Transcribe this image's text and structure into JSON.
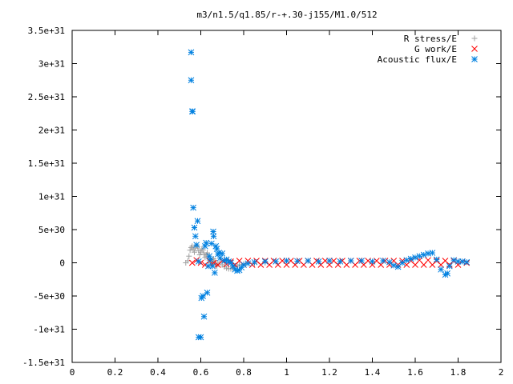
{
  "chart_data": {
    "type": "scatter",
    "title": "m3/n1.5/q1.85/r-+.30-j155/M1.0/512",
    "xlabel": "",
    "ylabel": "",
    "xlim": [
      0,
      2
    ],
    "ylim": [
      -1.5e+31,
      3.5e+31
    ],
    "grid": false,
    "legend_position": "top-right",
    "x_ticks": [
      "0",
      "0.2",
      "0.4",
      "0.6",
      "0.8",
      "1",
      "1.2",
      "1.4",
      "1.6",
      "1.8",
      "2"
    ],
    "x_tick_values": [
      0,
      0.2,
      0.4,
      0.6,
      0.8,
      1.0,
      1.2,
      1.4,
      1.6,
      1.8,
      2.0
    ],
    "y_ticks": [
      "3.5e+31",
      "3e+31",
      "2.5e+31",
      "2e+31",
      "1.5e+31",
      "1e+31",
      "5e+30",
      "0",
      "-5e+30",
      "-1e+31",
      "-1.5e+31"
    ],
    "y_tick_values": [
      3.5e+31,
      3e+31,
      2.5e+31,
      2e+31,
      1.5e+31,
      1e+31,
      5e+30,
      0,
      -5e+30,
      -1e+31,
      -1.5e+31
    ],
    "series": [
      {
        "name": "R stress/E",
        "marker": "plus",
        "color": "#a0a0a0",
        "points": [
          [
            0.53,
            0.0
          ],
          [
            0.54,
            3e+29
          ],
          [
            0.545,
            1e+30
          ],
          [
            0.55,
            1.9e+30
          ],
          [
            0.555,
            2.3e+30
          ],
          [
            0.56,
            2.5e+30
          ],
          [
            0.565,
            2e+30
          ],
          [
            0.57,
            1.6e+30
          ],
          [
            0.575,
            2.2e+30
          ],
          [
            0.58,
            2.6e+30
          ],
          [
            0.585,
            2.4e+30
          ],
          [
            0.59,
            1.8e+30
          ],
          [
            0.595,
            1.2e+30
          ],
          [
            0.6,
            1.6e+30
          ],
          [
            0.605,
            2.1e+30
          ],
          [
            0.61,
            1.9e+30
          ],
          [
            0.615,
            1.3e+30
          ],
          [
            0.62,
            8e+29
          ],
          [
            0.625,
            1.2e+30
          ],
          [
            0.63,
            1.5e+30
          ],
          [
            0.635,
            1e+30
          ],
          [
            0.64,
            4e+29
          ],
          [
            0.645,
            0.0
          ],
          [
            0.65,
            -3e+29
          ],
          [
            0.655,
            2e+29
          ],
          [
            0.66,
            6e+29
          ],
          [
            0.665,
            3e+29
          ],
          [
            0.67,
            -2e+29
          ],
          [
            0.675,
            -5e+29
          ],
          [
            0.68,
            -2e+29
          ],
          [
            0.69,
            1e+29
          ],
          [
            0.7,
            -3e+29
          ],
          [
            0.71,
            -6e+29
          ],
          [
            0.72,
            -8e+29
          ],
          [
            0.73,
            -9e+29
          ],
          [
            0.74,
            -9e+29
          ],
          [
            0.75,
            -8e+29
          ],
          [
            0.76,
            -6e+29
          ],
          [
            0.77,
            -5e+29
          ],
          [
            0.78,
            -3e+29
          ],
          [
            0.8,
            -2e+29
          ],
          [
            0.85,
            -1e+29
          ],
          [
            0.9,
            0.0
          ]
        ]
      },
      {
        "name": "G work/E",
        "marker": "cross",
        "color": "#ff0000",
        "points": [
          [
            0.56,
            0.0
          ],
          [
            0.58,
            4e+29
          ],
          [
            0.6,
            0.0
          ],
          [
            0.62,
            -3e+29
          ],
          [
            0.64,
            3e+29
          ],
          [
            0.66,
            0.0
          ],
          [
            0.68,
            -3e+29
          ],
          [
            0.7,
            3e+29
          ],
          [
            0.72,
            -2e+29
          ],
          [
            0.74,
            2e+29
          ],
          [
            0.76,
            -3e+29
          ],
          [
            0.78,
            3e+29
          ],
          [
            0.8,
            -3e+29
          ],
          [
            0.82,
            3e+29
          ],
          [
            0.84,
            -3e+29
          ],
          [
            0.86,
            3e+29
          ],
          [
            0.88,
            -3e+29
          ],
          [
            0.9,
            3e+29
          ],
          [
            0.92,
            -3e+29
          ],
          [
            0.94,
            3e+29
          ],
          [
            0.96,
            -3e+29
          ],
          [
            0.98,
            3e+29
          ],
          [
            1.0,
            -3e+29
          ],
          [
            1.02,
            3e+29
          ],
          [
            1.04,
            -3e+29
          ],
          [
            1.06,
            3e+29
          ],
          [
            1.08,
            -3e+29
          ],
          [
            1.1,
            3e+29
          ],
          [
            1.12,
            -3e+29
          ],
          [
            1.14,
            3e+29
          ],
          [
            1.16,
            -3e+29
          ],
          [
            1.18,
            3e+29
          ],
          [
            1.2,
            -3e+29
          ],
          [
            1.22,
            3e+29
          ],
          [
            1.24,
            -3e+29
          ],
          [
            1.26,
            3e+29
          ],
          [
            1.28,
            -3e+29
          ],
          [
            1.3,
            3e+29
          ],
          [
            1.32,
            -3e+29
          ],
          [
            1.34,
            3e+29
          ],
          [
            1.36,
            -3e+29
          ],
          [
            1.38,
            3e+29
          ],
          [
            1.4,
            -3e+29
          ],
          [
            1.42,
            3e+29
          ],
          [
            1.44,
            -3e+29
          ],
          [
            1.46,
            3e+29
          ],
          [
            1.48,
            -3e+29
          ],
          [
            1.5,
            3e+29
          ],
          [
            1.52,
            -3e+29
          ],
          [
            1.54,
            3e+29
          ],
          [
            1.56,
            -3e+29
          ],
          [
            1.58,
            3e+29
          ],
          [
            1.6,
            -3e+29
          ],
          [
            1.62,
            4e+29
          ],
          [
            1.64,
            -3e+29
          ],
          [
            1.66,
            4e+29
          ],
          [
            1.68,
            -3e+29
          ],
          [
            1.7,
            3e+29
          ],
          [
            1.72,
            -3e+29
          ],
          [
            1.74,
            3e+29
          ],
          [
            1.76,
            -3e+29
          ],
          [
            1.78,
            3e+29
          ],
          [
            1.8,
            -3e+29
          ],
          [
            1.82,
            2e+29
          ],
          [
            1.84,
            0.0
          ]
        ]
      },
      {
        "name": "Acoustic flux/E",
        "marker": "star",
        "color": "#0080e0",
        "points": [
          [
            0.555,
            3.17e+31
          ],
          [
            0.555,
            2.75e+31
          ],
          [
            0.56,
            2.28e+31
          ],
          [
            0.562,
            2.28e+31
          ],
          [
            0.565,
            8.3e+30
          ],
          [
            0.57,
            5.3e+30
          ],
          [
            0.575,
            4e+30
          ],
          [
            0.58,
            2.7e+30
          ],
          [
            0.585,
            6.3e+30
          ],
          [
            0.59,
            2e+29
          ],
          [
            0.59,
            -1.12e+31
          ],
          [
            0.6,
            -1.12e+31
          ],
          [
            0.603,
            -5.3e+30
          ],
          [
            0.61,
            -5e+30
          ],
          [
            0.615,
            -8.1e+30
          ],
          [
            0.62,
            2.5e+30
          ],
          [
            0.625,
            3e+30
          ],
          [
            0.63,
            -4.5e+30
          ],
          [
            0.635,
            -5e+29
          ],
          [
            0.64,
            1e+30
          ],
          [
            0.645,
            5e+29
          ],
          [
            0.65,
            2.9e+30
          ],
          [
            0.655,
            -5e+29
          ],
          [
            0.658,
            4.7e+30
          ],
          [
            0.66,
            4e+30
          ],
          [
            0.665,
            -1.5e+30
          ],
          [
            0.67,
            2.5e+30
          ],
          [
            0.675,
            2.1e+30
          ],
          [
            0.68,
            1.3e+30
          ],
          [
            0.685,
            1.5e+30
          ],
          [
            0.69,
            7e+29
          ],
          [
            0.7,
            1.4e+30
          ],
          [
            0.71,
            3e+29
          ],
          [
            0.72,
            5e+29
          ],
          [
            0.73,
            2e+29
          ],
          [
            0.74,
            0.0
          ],
          [
            0.75,
            -5e+29
          ],
          [
            0.76,
            -1e+30
          ],
          [
            0.77,
            -1.2e+30
          ],
          [
            0.78,
            -1.1e+30
          ],
          [
            0.79,
            -7e+29
          ],
          [
            0.8,
            -3e+29
          ],
          [
            0.82,
            -1e+29
          ],
          [
            0.85,
            1e+29
          ],
          [
            0.9,
            2e+29
          ],
          [
            0.95,
            2e+29
          ],
          [
            1.0,
            3e+29
          ],
          [
            1.05,
            2.5e+29
          ],
          [
            1.1,
            3e+29
          ],
          [
            1.15,
            2e+29
          ],
          [
            1.2,
            3e+29
          ],
          [
            1.25,
            2e+29
          ],
          [
            1.3,
            3e+29
          ],
          [
            1.35,
            3e+29
          ],
          [
            1.4,
            2e+29
          ],
          [
            1.45,
            3e+29
          ],
          [
            1.48,
            1e+29
          ],
          [
            1.5,
            -4e+29
          ],
          [
            1.52,
            -6e+29
          ],
          [
            1.54,
            0.0
          ],
          [
            1.56,
            4e+29
          ],
          [
            1.58,
            6e+29
          ],
          [
            1.6,
            8e+29
          ],
          [
            1.62,
            1e+30
          ],
          [
            1.64,
            1.2e+30
          ],
          [
            1.66,
            1.4e+30
          ],
          [
            1.68,
            1.5e+30
          ],
          [
            1.7,
            5e+29
          ],
          [
            1.72,
            -1e+30
          ],
          [
            1.74,
            -1.8e+30
          ],
          [
            1.75,
            -1.6e+30
          ],
          [
            1.76,
            -5e+29
          ],
          [
            1.78,
            4e+29
          ],
          [
            1.8,
            2e+29
          ],
          [
            1.82,
            2e+29
          ],
          [
            1.84,
            1e+29
          ]
        ]
      }
    ]
  }
}
